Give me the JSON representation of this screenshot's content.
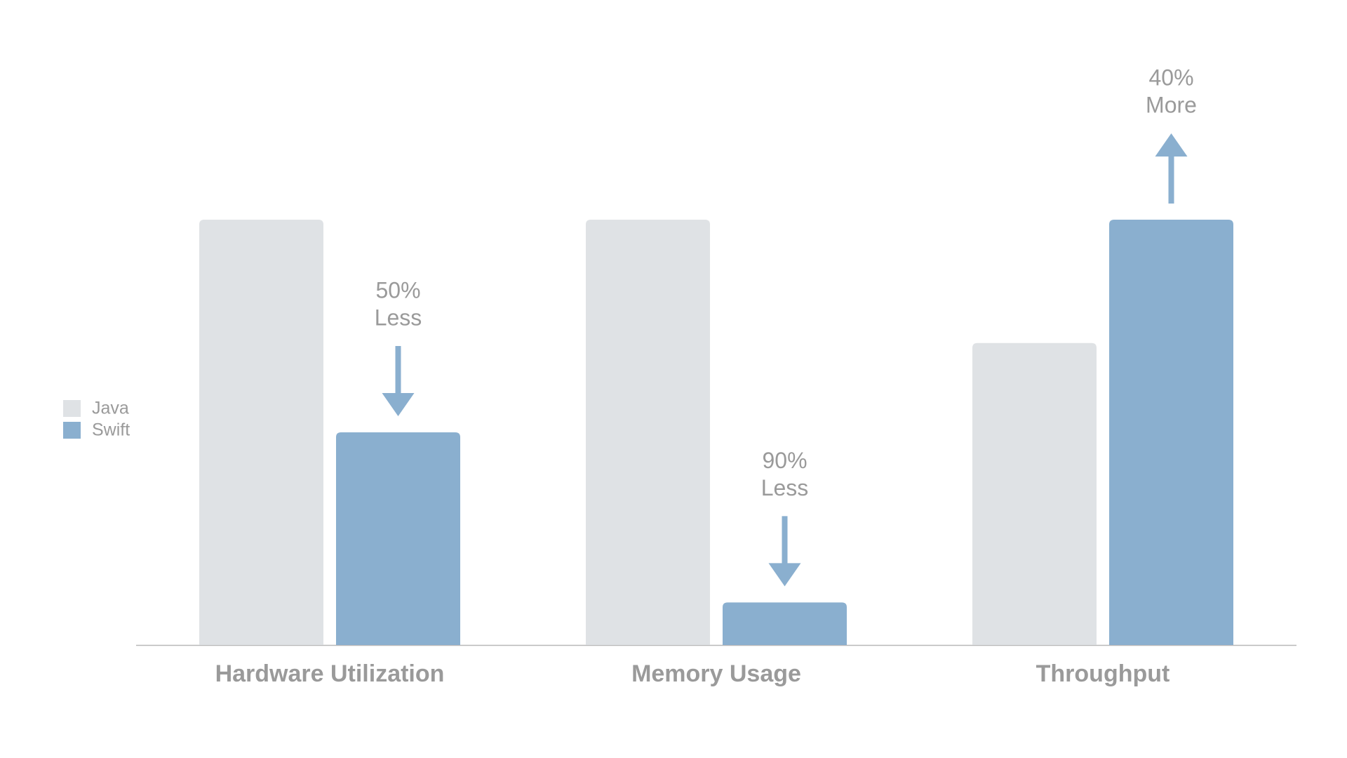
{
  "chart_data": {
    "type": "bar",
    "categories": [
      "Hardware Utilization",
      "Memory Usage",
      "Throughput"
    ],
    "series": [
      {
        "name": "Java",
        "color": "#dfe2e5",
        "values": [
          100,
          100,
          71
        ]
      },
      {
        "name": "Swift",
        "color": "#8aafcf",
        "values": [
          50,
          10,
          100
        ]
      }
    ],
    "annotations": [
      [
        "50%",
        "Less"
      ],
      [
        "90%",
        "Less"
      ],
      [
        "40%",
        "More"
      ]
    ],
    "ylim": [
      0,
      100
    ]
  }
}
